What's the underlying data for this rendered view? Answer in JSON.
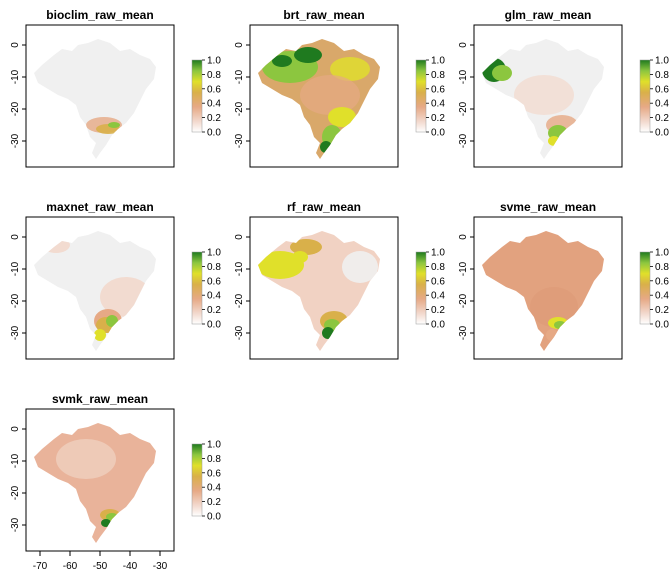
{
  "panels": [
    {
      "title": "bioclim_raw_mean",
      "style": "bioclim"
    },
    {
      "title": "brt_raw_mean",
      "style": "brt"
    },
    {
      "title": "glm_raw_mean",
      "style": "glm"
    },
    {
      "title": "maxnet_raw_mean",
      "style": "maxnet"
    },
    {
      "title": "rf_raw_mean",
      "style": "rf"
    },
    {
      "title": "svme_raw_mean",
      "style": "svme"
    },
    {
      "title": "svmk_raw_mean",
      "style": "svmk"
    }
  ],
  "y_ticks": [
    "0",
    "-10",
    "-20",
    "-30"
  ],
  "x_ticks": [
    "-70",
    "-60",
    "-50",
    "-40",
    "-30"
  ],
  "legend_ticks": [
    "1.0",
    "0.8",
    "0.6",
    "0.4",
    "0.2",
    "0.0"
  ],
  "colors": {
    "background_land": "#f0f0f0",
    "low": "#f2d8cc",
    "mid_low": "#e6a985",
    "mid": "#d9b04a",
    "mid_high": "#e0e02a",
    "high": "#8cc63f",
    "top": "#1f7a1f",
    "frame": "#000000"
  }
}
